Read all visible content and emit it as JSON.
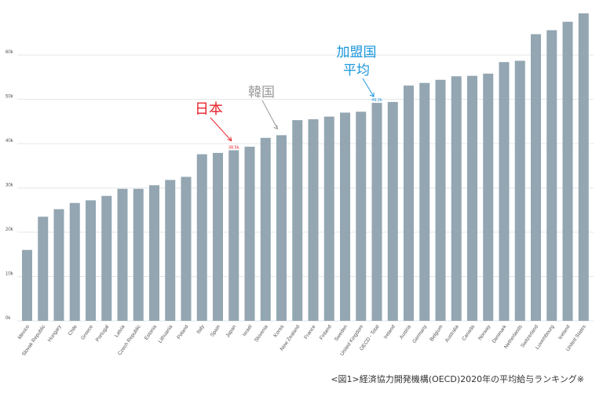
{
  "chart_data": {
    "type": "bar",
    "ylim": [
      0,
      71000
    ],
    "yticks": [
      {
        "value": 0,
        "label": "0k"
      },
      {
        "value": 10000,
        "label": "10k"
      },
      {
        "value": 20000,
        "label": "20k"
      },
      {
        "value": 30000,
        "label": "30k"
      },
      {
        "value": 40000,
        "label": "40k"
      },
      {
        "value": 50000,
        "label": "50k"
      },
      {
        "value": 60000,
        "label": "60k"
      }
    ],
    "grid": true,
    "categories": [
      "Mexico",
      "Slovak Republic",
      "Hungary",
      "Chile",
      "Greece",
      "Portugal",
      "Latvia",
      "Czech Republic",
      "Estonia",
      "Lithuania",
      "Poland",
      "Italy",
      "Spain",
      "Japan",
      "Israel",
      "Slovenia",
      "Korea",
      "New Zealand",
      "France",
      "Finland",
      "Sweden",
      "United Kingdom",
      "OECD - Total",
      "Ireland",
      "Austria",
      "Germany",
      "Belgium",
      "Australia",
      "Canada",
      "Norway",
      "Denmark",
      "Netherlands",
      "Switzerland",
      "Luxembourg",
      "Iceland",
      "United States"
    ],
    "values": [
      16000,
      23500,
      25200,
      26600,
      27200,
      28200,
      29800,
      29800,
      30600,
      31800,
      32500,
      37600,
      37900,
      38500,
      39300,
      41300,
      41900,
      45300,
      45500,
      46100,
      47000,
      47200,
      49200,
      49400,
      53100,
      53700,
      54400,
      55200,
      55300,
      55800,
      58400,
      58700,
      64700,
      65600,
      67500,
      69400
    ],
    "highlights": [
      {
        "category": "Japan",
        "color": "#e8232a",
        "data_label": "38.5k"
      },
      {
        "category": "OECD - Total",
        "color": "#1a96dc",
        "data_label": "49.2k"
      }
    ],
    "base_color": "#93a6b2",
    "annotations": [
      {
        "text": "日本",
        "target": "Japan",
        "color": "#e8232a"
      },
      {
        "text": "韓国",
        "target": "Korea",
        "color": "#9a9a9a"
      },
      {
        "text_lines": [
          "加盟国",
          "平均"
        ],
        "target": "OECD - Total",
        "color": "#1a96dc"
      }
    ]
  },
  "caption": "<図1>経済協力開発機構(OECD)2020年の平均給与ランキング※"
}
